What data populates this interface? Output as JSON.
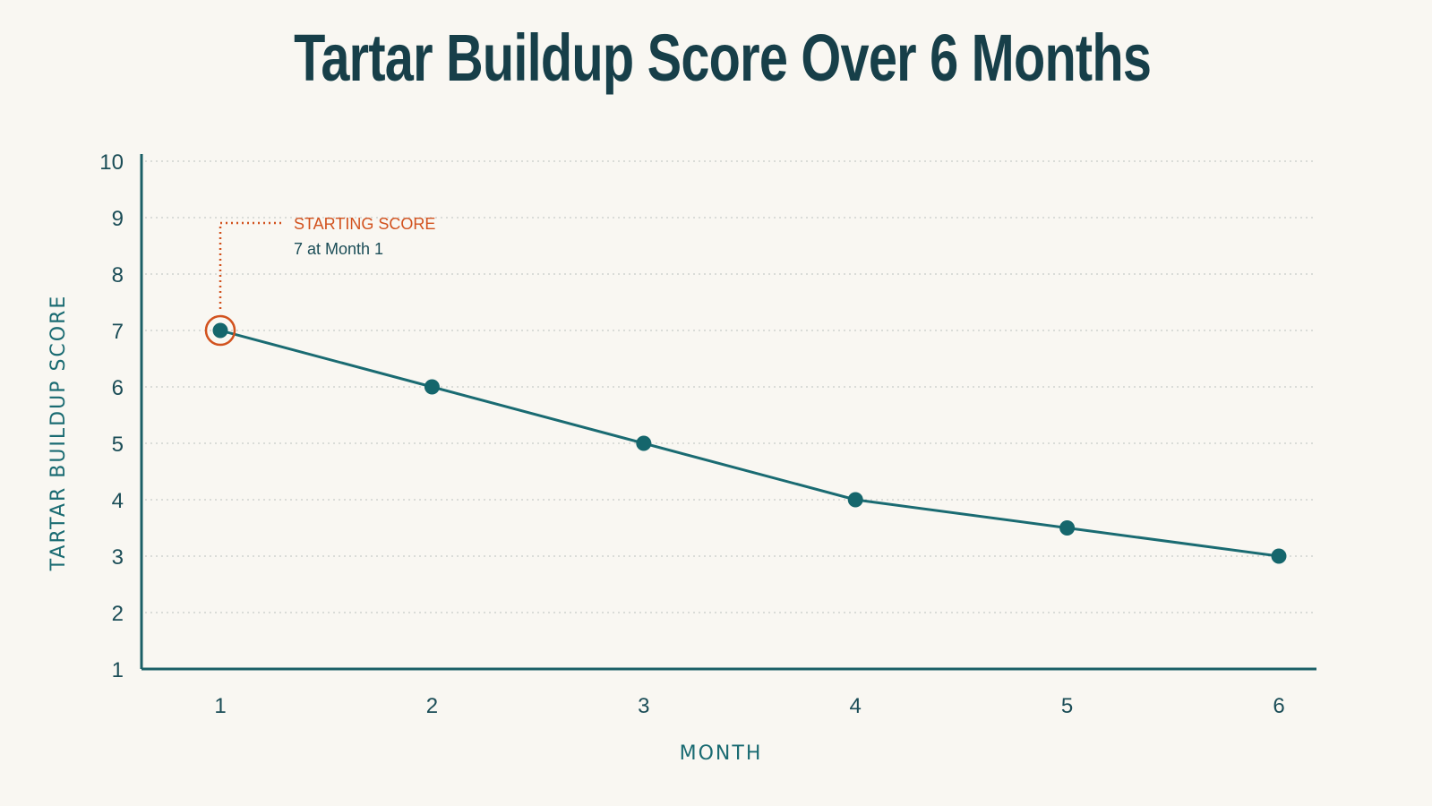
{
  "chart_data": {
    "type": "line",
    "title": "Tartar Buildup Score Over 6 Months",
    "xlabel": "MONTH",
    "ylabel": "TARTAR BUILDUP SCORE",
    "x": [
      1,
      2,
      3,
      4,
      5,
      6
    ],
    "series": [
      {
        "values": [
          7,
          6,
          5,
          4,
          3.5,
          3
        ]
      }
    ],
    "xticks": [
      1,
      2,
      3,
      4,
      5,
      6
    ],
    "yticks": [
      1,
      2,
      3,
      4,
      5,
      6,
      7,
      8,
      9,
      10
    ],
    "xlim": [
      1,
      6
    ],
    "ylim": [
      1,
      10
    ],
    "grid": true,
    "grid_style": "dotted horizontal",
    "annotation": {
      "title": "STARTING SCORE",
      "text": "7 at Month 1",
      "x": 1,
      "y": 7
    },
    "colors": {
      "line": "#1a6b72",
      "marker": "#15666c",
      "axis": "#1a5f66",
      "highlight": "#d2521e",
      "title": "#173f49",
      "grid": "#cfd3cf",
      "background": "#f9f7f2"
    }
  }
}
